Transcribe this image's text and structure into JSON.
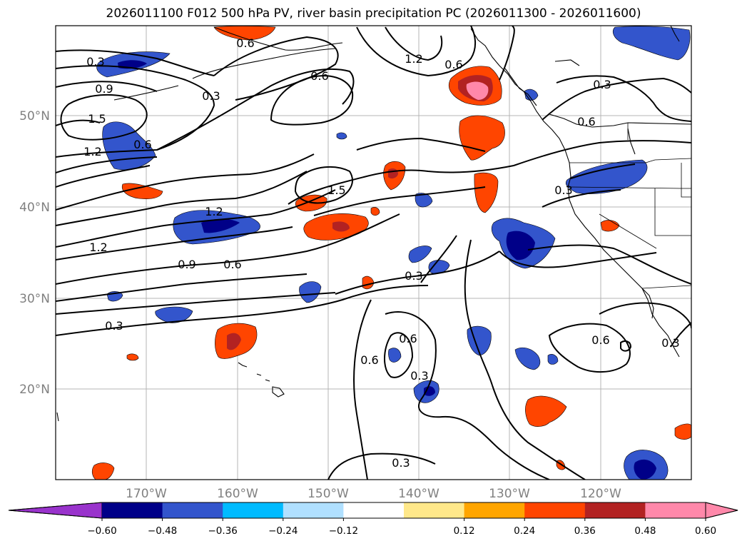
{
  "title": "2026011100 F012 500 hPa PV, river basin precipitation PC (2026011300 - 2026011600)",
  "lat_labels": [
    "50°N",
    "40°N",
    "30°N",
    "20°N"
  ],
  "lon_labels": [
    "170°W",
    "160°W",
    "150°W",
    "140°W",
    "130°W",
    "120°W"
  ],
  "contour_labels": [
    "0.3",
    "0.6",
    "1.2",
    "0.6",
    "0.9",
    "0.3",
    "1.5",
    "1.2",
    "0.6",
    "0.6",
    "0.3",
    "1.5",
    "1.2",
    "1.2",
    "0.9",
    "0.6",
    "0.3",
    "0.3",
    "0.6",
    "0.6",
    "0.3",
    "0.3",
    "0.6",
    "0.3",
    "0.6",
    "0.3"
  ],
  "colorbar": {
    "colors": [
      "#9933cc",
      "#000088",
      "#3355cc",
      "#00bbff",
      "#b0e0ff",
      "#ffffff",
      "#ffe88a",
      "#ffa500",
      "#ff4500",
      "#b22222",
      "#ff88aa",
      "#ff88aa"
    ],
    "tick_labels": [
      "−0.60",
      "−0.48",
      "−0.36",
      "−0.24",
      "−0.12",
      "0.12",
      "0.24",
      "0.36",
      "0.48",
      "0.60"
    ]
  }
}
